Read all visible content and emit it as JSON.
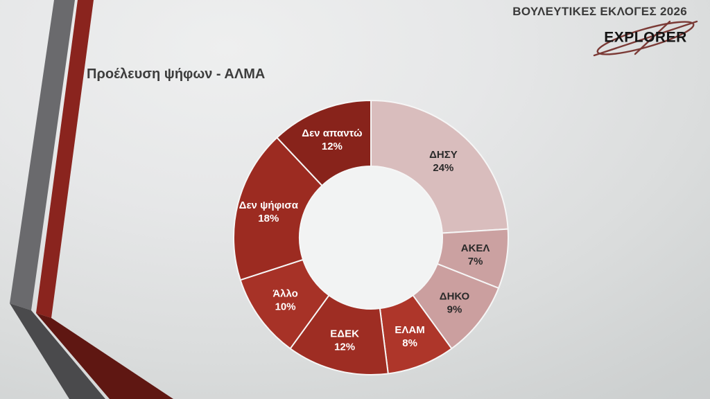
{
  "header": {
    "election_title": "ΒΟΥΛΕΥΤΙΚΕΣ ΕΚΛΟΓΕΣ 2026",
    "logo_text": "EXPLORER"
  },
  "slide": {
    "title": "Προέλευση ψήφων - ΑΛΜΑ"
  },
  "chart_data": {
    "type": "pie",
    "subtype": "donut",
    "title": "Προέλευση ψήφων - ΑΛΜΑ",
    "direction": "clockwise",
    "start_angle_deg": 0,
    "inner_radius_ratio": 0.52,
    "hole_color": "#f2f3f3",
    "divider_color": "#f6f6f6",
    "legend": "none",
    "categories": [
      "ΔΗΣΥ",
      "ΑΚΕΛ",
      "ΔΗΚΟ",
      "ΕΛΑΜ",
      "ΕΔΕΚ",
      "Άλλο",
      "Δεν ψήφισα",
      "Δεν απαντώ"
    ],
    "values": [
      24,
      7,
      9,
      8,
      12,
      10,
      18,
      12
    ],
    "segments": [
      {
        "label": "ΔΗΣΥ",
        "value": 24,
        "display": "24%",
        "color": "#d9bdbd",
        "text_color": "#2a2a2a"
      },
      {
        "label": "ΑΚΕΛ",
        "value": 7,
        "display": "7%",
        "color": "#cba1a1",
        "text_color": "#2a2a2a"
      },
      {
        "label": "ΔΗΚΟ",
        "value": 9,
        "display": "9%",
        "color": "#cb9f9f",
        "text_color": "#2a2a2a"
      },
      {
        "label": "ΕΛΑΜ",
        "value": 8,
        "display": "8%",
        "color": "#ae362a",
        "text_color": "#ffffff"
      },
      {
        "label": "ΕΔΕΚ",
        "value": 12,
        "display": "12%",
        "color": "#9e2d23",
        "text_color": "#ffffff"
      },
      {
        "label": "Άλλο",
        "value": 10,
        "display": "10%",
        "color": "#a73227",
        "text_color": "#ffffff"
      },
      {
        "label": "Δεν ψήφισα",
        "value": 18,
        "display": "18%",
        "color": "#9c2b21",
        "text_color": "#ffffff"
      },
      {
        "label": "Δεν απαντώ",
        "value": 12,
        "display": "12%",
        "color": "#88231b",
        "text_color": "#ffffff"
      }
    ]
  },
  "decoration": {
    "chevron_gray_upper": "#6a6a6d",
    "chevron_gray_lower": "#4a4a4c",
    "chevron_red_upper": "#8a241e",
    "chevron_red_lower": "#5f1712",
    "logo_accent": "#7b3a36"
  }
}
